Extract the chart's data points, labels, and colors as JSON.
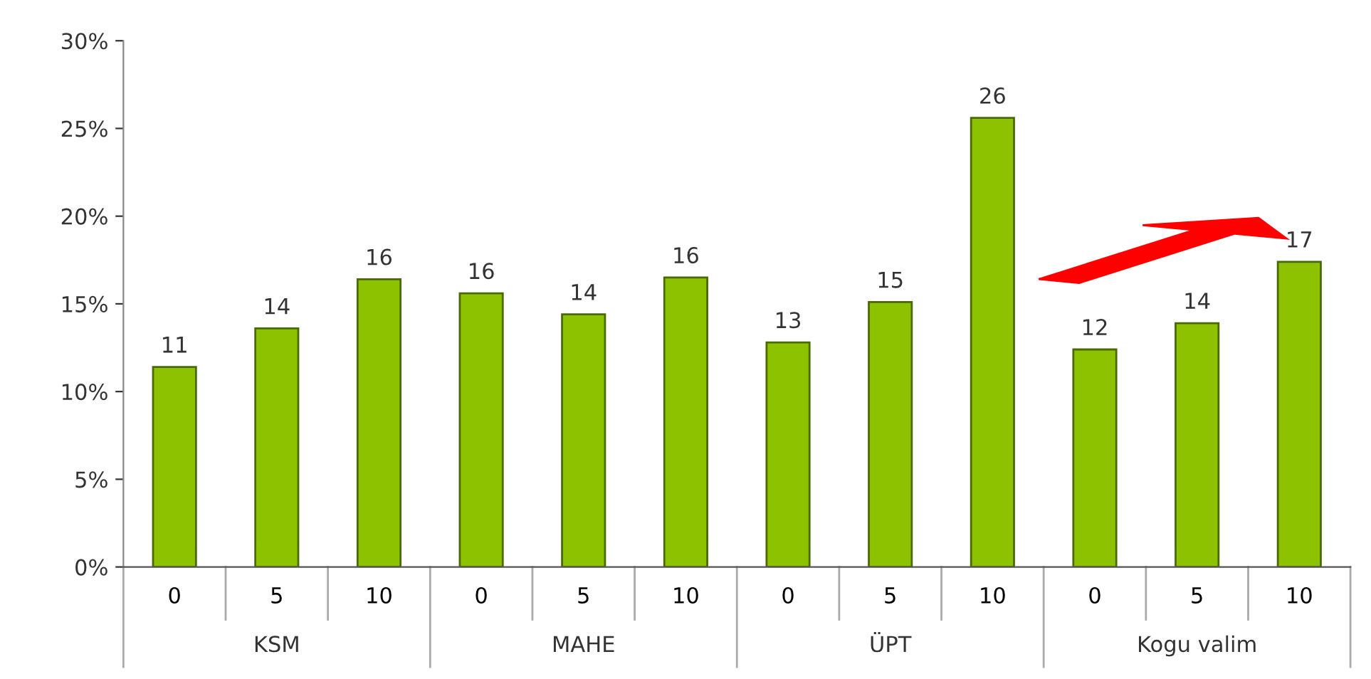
{
  "chart_data": {
    "type": "bar",
    "categories": [
      "0",
      "5",
      "10",
      "0",
      "5",
      "10",
      "0",
      "5",
      "10",
      "0",
      "5",
      "10"
    ],
    "values": [
      11.4,
      13.6,
      16.4,
      15.6,
      14.4,
      16.5,
      12.8,
      15.1,
      25.6,
      12.4,
      13.9,
      17.4
    ],
    "value_labels": [
      "11",
      "14",
      "16",
      "16",
      "14",
      "16",
      "13",
      "15",
      "26",
      "12",
      "14",
      "17"
    ],
    "color": "#8cc200",
    "ylim": [
      0,
      30
    ],
    "yticks": [
      {
        "value": 0,
        "label": "0%"
      },
      {
        "value": 5,
        "label": "5%"
      },
      {
        "value": 10,
        "label": "10%"
      },
      {
        "value": 15,
        "label": "15%"
      },
      {
        "value": 20,
        "label": "20%"
      },
      {
        "value": 25,
        "label": "25%"
      },
      {
        "value": 30,
        "label": "30%"
      }
    ],
    "annotations": [
      "KSM",
      "MAHE",
      "ÜPT",
      "Kogu valim"
    ],
    "grid": false
  }
}
